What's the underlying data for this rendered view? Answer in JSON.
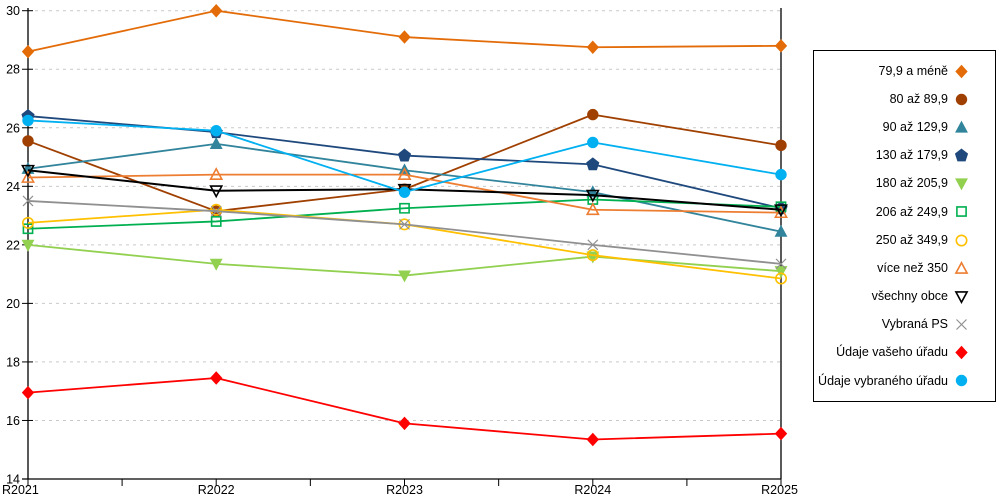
{
  "chart_data": {
    "type": "line",
    "title": "",
    "xlabel": "",
    "ylabel": "",
    "x_categories": [
      "R2021",
      "R2022",
      "R2023",
      "R2024",
      "R2025"
    ],
    "y_axis": {
      "min": 14,
      "max": 30,
      "step": 2,
      "ticks": [
        14,
        16,
        18,
        20,
        22,
        24,
        26,
        28,
        30
      ]
    },
    "grid": "horizontal-dashed",
    "legend_position": "right",
    "series": [
      {
        "name": "79,9 a méně",
        "color": "#E36C09",
        "marker": "diamond",
        "filled": true,
        "values": [
          28.6,
          30.0,
          29.1,
          28.75,
          28.8
        ]
      },
      {
        "name": "80 až 89,9",
        "color": "#A04000",
        "marker": "circle",
        "filled": true,
        "values": [
          25.55,
          23.15,
          23.9,
          26.45,
          25.4
        ]
      },
      {
        "name": "90 až 129,9",
        "color": "#31849B",
        "marker": "triangle-up",
        "filled": true,
        "values": [
          24.6,
          25.45,
          24.55,
          23.8,
          22.45
        ]
      },
      {
        "name": "130 až 179,9",
        "color": "#1F497D",
        "marker": "pentagon",
        "filled": true,
        "values": [
          26.4,
          25.85,
          25.05,
          24.75,
          23.25
        ]
      },
      {
        "name": "180 až 205,9",
        "color": "#92D050",
        "marker": "triangle-down",
        "filled": true,
        "values": [
          22.0,
          21.35,
          20.95,
          21.6,
          21.1
        ]
      },
      {
        "name": "206 až 249,9",
        "color": "#00B050",
        "marker": "square",
        "filled": false,
        "values": [
          22.55,
          22.8,
          23.25,
          23.55,
          23.3
        ]
      },
      {
        "name": "250 až 349,9",
        "color": "#FFC000",
        "marker": "circle",
        "filled": false,
        "values": [
          22.75,
          23.2,
          22.7,
          21.65,
          20.85
        ]
      },
      {
        "name": "více než 350",
        "color": "#ED7D31",
        "marker": "triangle-up",
        "filled": false,
        "values": [
          24.3,
          24.4,
          24.4,
          23.2,
          23.1
        ]
      },
      {
        "name": "všechny obce",
        "color": "#000000",
        "marker": "triangle-down",
        "filled": false,
        "values": [
          24.55,
          23.85,
          23.9,
          23.7,
          23.2
        ]
      },
      {
        "name": "Vybraná PS",
        "color": "#909090",
        "marker": "x",
        "filled": false,
        "values": [
          23.5,
          23.15,
          22.7,
          22.0,
          21.35
        ]
      },
      {
        "name": "Údaje vašeho úřadu",
        "color": "#FF0000",
        "marker": "diamond",
        "filled": true,
        "values": [
          16.95,
          17.45,
          15.9,
          15.35,
          15.55
        ]
      },
      {
        "name": "Údaje vybraného úřadu",
        "color": "#00B0F0",
        "marker": "circle",
        "filled": true,
        "values": [
          26.25,
          25.9,
          23.8,
          25.5,
          24.4
        ]
      }
    ]
  }
}
